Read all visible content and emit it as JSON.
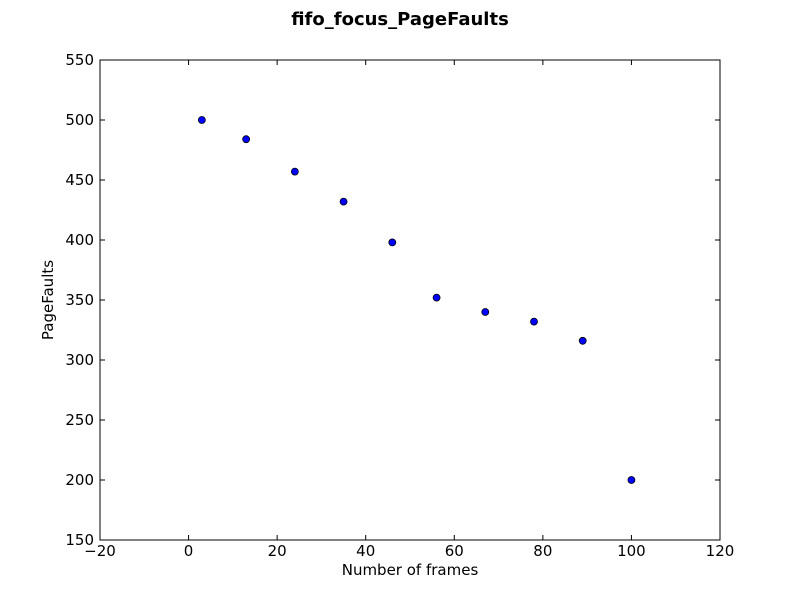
{
  "chart_data": {
    "type": "scatter",
    "title": "fifo_focus_PageFaults",
    "xlabel": "Number of frames",
    "ylabel": "PageFaults",
    "xlim": [
      -20,
      120
    ],
    "ylim": [
      150,
      550
    ],
    "xticks": [
      -20,
      0,
      20,
      40,
      60,
      80,
      100,
      120
    ],
    "yticks": [
      150,
      200,
      250,
      300,
      350,
      400,
      450,
      500,
      550
    ],
    "xtick_labels": [
      "−20",
      "0",
      "20",
      "40",
      "60",
      "80",
      "100",
      "120"
    ],
    "ytick_labels": [
      "150",
      "200",
      "250",
      "300",
      "350",
      "400",
      "450",
      "500",
      "550"
    ],
    "grid": false,
    "marker_color": "#0000ff",
    "marker_edge": "#000000",
    "series": [
      {
        "x": [
          3,
          13,
          24,
          35,
          46,
          56,
          67,
          78,
          89,
          100
        ],
        "y": [
          500,
          484,
          457,
          432,
          398,
          352,
          340,
          332,
          316,
          200
        ]
      }
    ]
  }
}
